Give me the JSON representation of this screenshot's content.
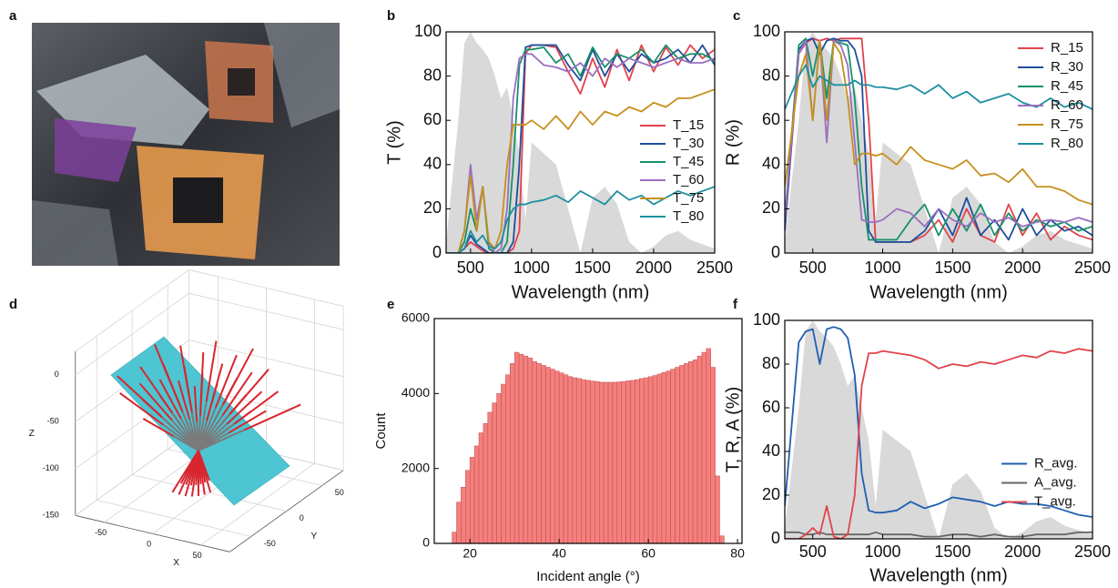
{
  "photo": {
    "panel_label": "a"
  },
  "chart_data": [
    {
      "type": "line",
      "panel_label": "b",
      "xlabel": "Wavelength (nm)",
      "ylabel": "T (%)",
      "xlim": [
        300,
        2500
      ],
      "xticks": [
        500,
        1000,
        1500,
        2000,
        2500
      ],
      "ylim": [
        0,
        100
      ],
      "yticks": [
        0,
        20,
        40,
        60,
        80,
        100
      ],
      "legend": "lower right",
      "x": [
        300,
        400,
        450,
        500,
        550,
        600,
        650,
        700,
        750,
        800,
        850,
        900,
        950,
        1000,
        1100,
        1200,
        1300,
        1400,
        1500,
        1600,
        1700,
        1800,
        1900,
        2000,
        2100,
        2200,
        2300,
        2400,
        2500
      ],
      "fill_area": {
        "color": "#d9d9d9",
        "values": [
          5,
          60,
          95,
          100,
          95,
          92,
          88,
          80,
          70,
          75,
          60,
          45,
          15,
          50,
          45,
          40,
          20,
          0,
          25,
          30,
          22,
          5,
          0,
          3,
          8,
          10,
          6,
          4,
          2
        ]
      },
      "series": [
        {
          "name": "T_15",
          "color": "#e0434b",
          "values": [
            0,
            0,
            2,
            5,
            3,
            1,
            0,
            0,
            0,
            0,
            2,
            10,
            90,
            94,
            94,
            93,
            82,
            72,
            88,
            75,
            92,
            78,
            94,
            82,
            93,
            85,
            94,
            88,
            92
          ]
        },
        {
          "name": "T_30",
          "color": "#1f4e9c",
          "values": [
            0,
            0,
            2,
            8,
            4,
            2,
            0,
            0,
            0,
            0,
            5,
            40,
            93,
            94,
            94,
            94,
            85,
            78,
            92,
            80,
            90,
            82,
            90,
            86,
            88,
            92,
            86,
            94,
            85
          ]
        },
        {
          "name": "T_45",
          "color": "#16916a",
          "values": [
            0,
            0,
            5,
            20,
            10,
            30,
            2,
            0,
            0,
            5,
            40,
            85,
            92,
            92,
            93,
            86,
            90,
            80,
            93,
            84,
            90,
            88,
            92,
            86,
            94,
            88,
            90,
            90,
            87
          ]
        },
        {
          "name": "T_60",
          "color": "#9a6fc1",
          "values": [
            0,
            0,
            10,
            40,
            15,
            30,
            5,
            0,
            2,
            20,
            70,
            88,
            90,
            90,
            85,
            84,
            82,
            86,
            80,
            88,
            84,
            88,
            86,
            84,
            86,
            88,
            86,
            86,
            88
          ]
        },
        {
          "name": "T_75",
          "color": "#c7901c",
          "values": [
            0,
            0,
            10,
            35,
            10,
            30,
            5,
            2,
            10,
            40,
            58,
            58,
            58,
            60,
            56,
            62,
            56,
            64,
            58,
            64,
            62,
            66,
            64,
            68,
            66,
            70,
            70,
            72,
            74
          ]
        },
        {
          "name": "T_80",
          "color": "#1d8fa0",
          "values": [
            0,
            0,
            2,
            10,
            5,
            8,
            3,
            2,
            5,
            15,
            20,
            22,
            22,
            23,
            24,
            26,
            23,
            28,
            25,
            22,
            28,
            24,
            26,
            22,
            25,
            28,
            26,
            28,
            30
          ]
        }
      ]
    },
    {
      "type": "line",
      "panel_label": "c",
      "xlabel": "Wavelength (nm)",
      "ylabel": "R (%)",
      "xlim": [
        300,
        2500
      ],
      "xticks": [
        500,
        1000,
        1500,
        2000,
        2500
      ],
      "ylim": [
        0,
        100
      ],
      "yticks": [
        0,
        20,
        40,
        60,
        80,
        100
      ],
      "legend": "upper right",
      "x": [
        300,
        400,
        450,
        500,
        550,
        600,
        650,
        700,
        750,
        800,
        850,
        900,
        950,
        1000,
        1100,
        1200,
        1300,
        1400,
        1500,
        1600,
        1700,
        1800,
        1900,
        2000,
        2100,
        2200,
        2300,
        2400,
        2500
      ],
      "fill_area": {
        "color": "#d9d9d9",
        "values": [
          5,
          60,
          95,
          100,
          95,
          92,
          88,
          80,
          70,
          75,
          60,
          45,
          15,
          50,
          45,
          40,
          20,
          0,
          25,
          30,
          22,
          5,
          0,
          3,
          8,
          10,
          6,
          4,
          2
        ]
      },
      "series": [
        {
          "name": "R_15",
          "color": "#e0434b",
          "values": [
            10,
            90,
            95,
            97,
            96,
            97,
            96,
            97,
            97,
            97,
            97,
            60,
            5,
            5,
            5,
            5,
            8,
            15,
            5,
            20,
            8,
            5,
            22,
            8,
            18,
            6,
            12,
            8,
            6
          ]
        },
        {
          "name": "R_30",
          "color": "#1f4e9c",
          "values": [
            10,
            92,
            96,
            97,
            90,
            96,
            97,
            96,
            96,
            92,
            80,
            10,
            5,
            5,
            5,
            5,
            10,
            20,
            8,
            25,
            8,
            15,
            6,
            20,
            8,
            15,
            10,
            12,
            8
          ]
        },
        {
          "name": "R_45",
          "color": "#16916a",
          "values": [
            15,
            94,
            97,
            80,
            96,
            70,
            96,
            95,
            94,
            70,
            30,
            6,
            6,
            6,
            6,
            15,
            22,
            8,
            20,
            10,
            22,
            8,
            18,
            10,
            15,
            12,
            14,
            10,
            12
          ]
        },
        {
          "name": "R_60",
          "color": "#9a6fc1",
          "values": [
            15,
            90,
            96,
            60,
            96,
            50,
            96,
            94,
            85,
            50,
            15,
            14,
            14,
            15,
            20,
            18,
            12,
            20,
            15,
            12,
            18,
            14,
            16,
            12,
            14,
            15,
            14,
            16,
            14
          ]
        },
        {
          "name": "R_75",
          "color": "#c7901c",
          "values": [
            30,
            80,
            90,
            60,
            96,
            60,
            95,
            90,
            70,
            40,
            45,
            45,
            44,
            45,
            40,
            48,
            42,
            40,
            38,
            42,
            35,
            36,
            32,
            38,
            30,
            30,
            28,
            24,
            22
          ]
        },
        {
          "name": "R_80",
          "color": "#1d8fa0",
          "values": [
            65,
            80,
            85,
            75,
            80,
            78,
            76,
            76,
            76,
            78,
            76,
            76,
            75,
            75,
            74,
            76,
            72,
            76,
            70,
            73,
            68,
            70,
            72,
            68,
            66,
            70,
            66,
            68,
            65
          ]
        }
      ]
    },
    {
      "type": "3d",
      "panel_label": "d",
      "xlabel": "X",
      "ylabel": "Y",
      "zlabel": "Z",
      "xlim": [
        -80,
        80
      ],
      "ylim": [
        -80,
        80
      ],
      "zlim": [
        -150,
        25
      ],
      "xticks": [
        -50,
        0,
        50
      ],
      "yticks": [
        -50,
        0,
        50
      ],
      "zticks": [
        0,
        -50,
        -100,
        -150
      ]
    },
    {
      "type": "histogram",
      "panel_label": "e",
      "xlabel": "Incident angle (°)",
      "ylabel": "Count",
      "xlim": [
        12,
        81
      ],
      "xticks": [
        20,
        40,
        60,
        80
      ],
      "ylim": [
        0,
        6000
      ],
      "yticks": [
        0,
        2000,
        4000,
        6000
      ],
      "color": "#f4807e",
      "edge_color": "#c24a4a",
      "bins": [
        16,
        17,
        18,
        19,
        20,
        21,
        22,
        23,
        24,
        25,
        26,
        27,
        28,
        29,
        30,
        31,
        32,
        33,
        34,
        35,
        36,
        37,
        38,
        39,
        40,
        41,
        42,
        43,
        44,
        45,
        46,
        47,
        48,
        49,
        50,
        51,
        52,
        53,
        54,
        55,
        56,
        57,
        58,
        59,
        60,
        61,
        62,
        63,
        64,
        65,
        66,
        67,
        68,
        69,
        70,
        71,
        72,
        73,
        74,
        75,
        76,
        77
      ],
      "values": [
        300,
        1100,
        1500,
        1950,
        2300,
        2600,
        2950,
        3200,
        3500,
        3750,
        4000,
        4250,
        4500,
        4800,
        5100,
        5050,
        5000,
        4950,
        4850,
        4800,
        4750,
        4700,
        4650,
        4600,
        4550,
        4500,
        4450,
        4420,
        4400,
        4370,
        4350,
        4330,
        4320,
        4300,
        4300,
        4300,
        4300,
        4310,
        4320,
        4340,
        4350,
        4370,
        4400,
        4420,
        4450,
        4480,
        4520,
        4560,
        4600,
        4650,
        4700,
        4750,
        4800,
        4850,
        4900,
        5000,
        5100,
        5200,
        4700,
        1800,
        200
      ]
    },
    {
      "type": "line",
      "panel_label": "f",
      "xlabel": "Wavelength (nm)",
      "ylabel": "T, R, A (%)",
      "xlim": [
        300,
        2500
      ],
      "xticks": [
        500,
        1000,
        1500,
        2000,
        2500
      ],
      "ylim": [
        0,
        100
      ],
      "yticks": [
        0,
        20,
        40,
        60,
        80,
        100
      ],
      "legend": "lower right",
      "x": [
        300,
        400,
        450,
        500,
        550,
        600,
        650,
        700,
        750,
        800,
        850,
        900,
        950,
        1000,
        1100,
        1200,
        1300,
        1400,
        1500,
        1600,
        1700,
        1800,
        1900,
        2000,
        2100,
        2200,
        2300,
        2400,
        2500
      ],
      "fill_area": {
        "color": "#d9d9d9",
        "values": [
          5,
          60,
          95,
          100,
          95,
          92,
          88,
          80,
          70,
          75,
          60,
          45,
          15,
          50,
          45,
          40,
          20,
          0,
          25,
          30,
          22,
          5,
          0,
          3,
          8,
          10,
          6,
          4,
          2
        ]
      },
      "series": [
        {
          "name": "R_avg.",
          "color": "#1f5fb0",
          "values": [
            15,
            90,
            95,
            96,
            80,
            96,
            97,
            96,
            92,
            75,
            30,
            13,
            12,
            12,
            13,
            17,
            14,
            16,
            19,
            18,
            17,
            15,
            17,
            16,
            16,
            15,
            13,
            11,
            10
          ]
        },
        {
          "name": "A_avg.",
          "color": "#666666",
          "values": [
            3,
            3,
            2,
            2,
            3,
            2,
            2,
            2,
            2,
            2,
            2,
            2,
            3,
            2,
            2,
            2,
            1,
            1,
            2,
            2,
            1,
            2,
            1,
            1,
            2,
            2,
            2,
            3,
            3
          ]
        },
        {
          "name": "T_avg.",
          "color": "#e0434b",
          "values": [
            0,
            0,
            2,
            5,
            2,
            15,
            1,
            0,
            2,
            20,
            70,
            85,
            85,
            86,
            85,
            84,
            82,
            78,
            80,
            79,
            81,
            80,
            82,
            84,
            83,
            86,
            85,
            87,
            86
          ]
        }
      ]
    }
  ]
}
